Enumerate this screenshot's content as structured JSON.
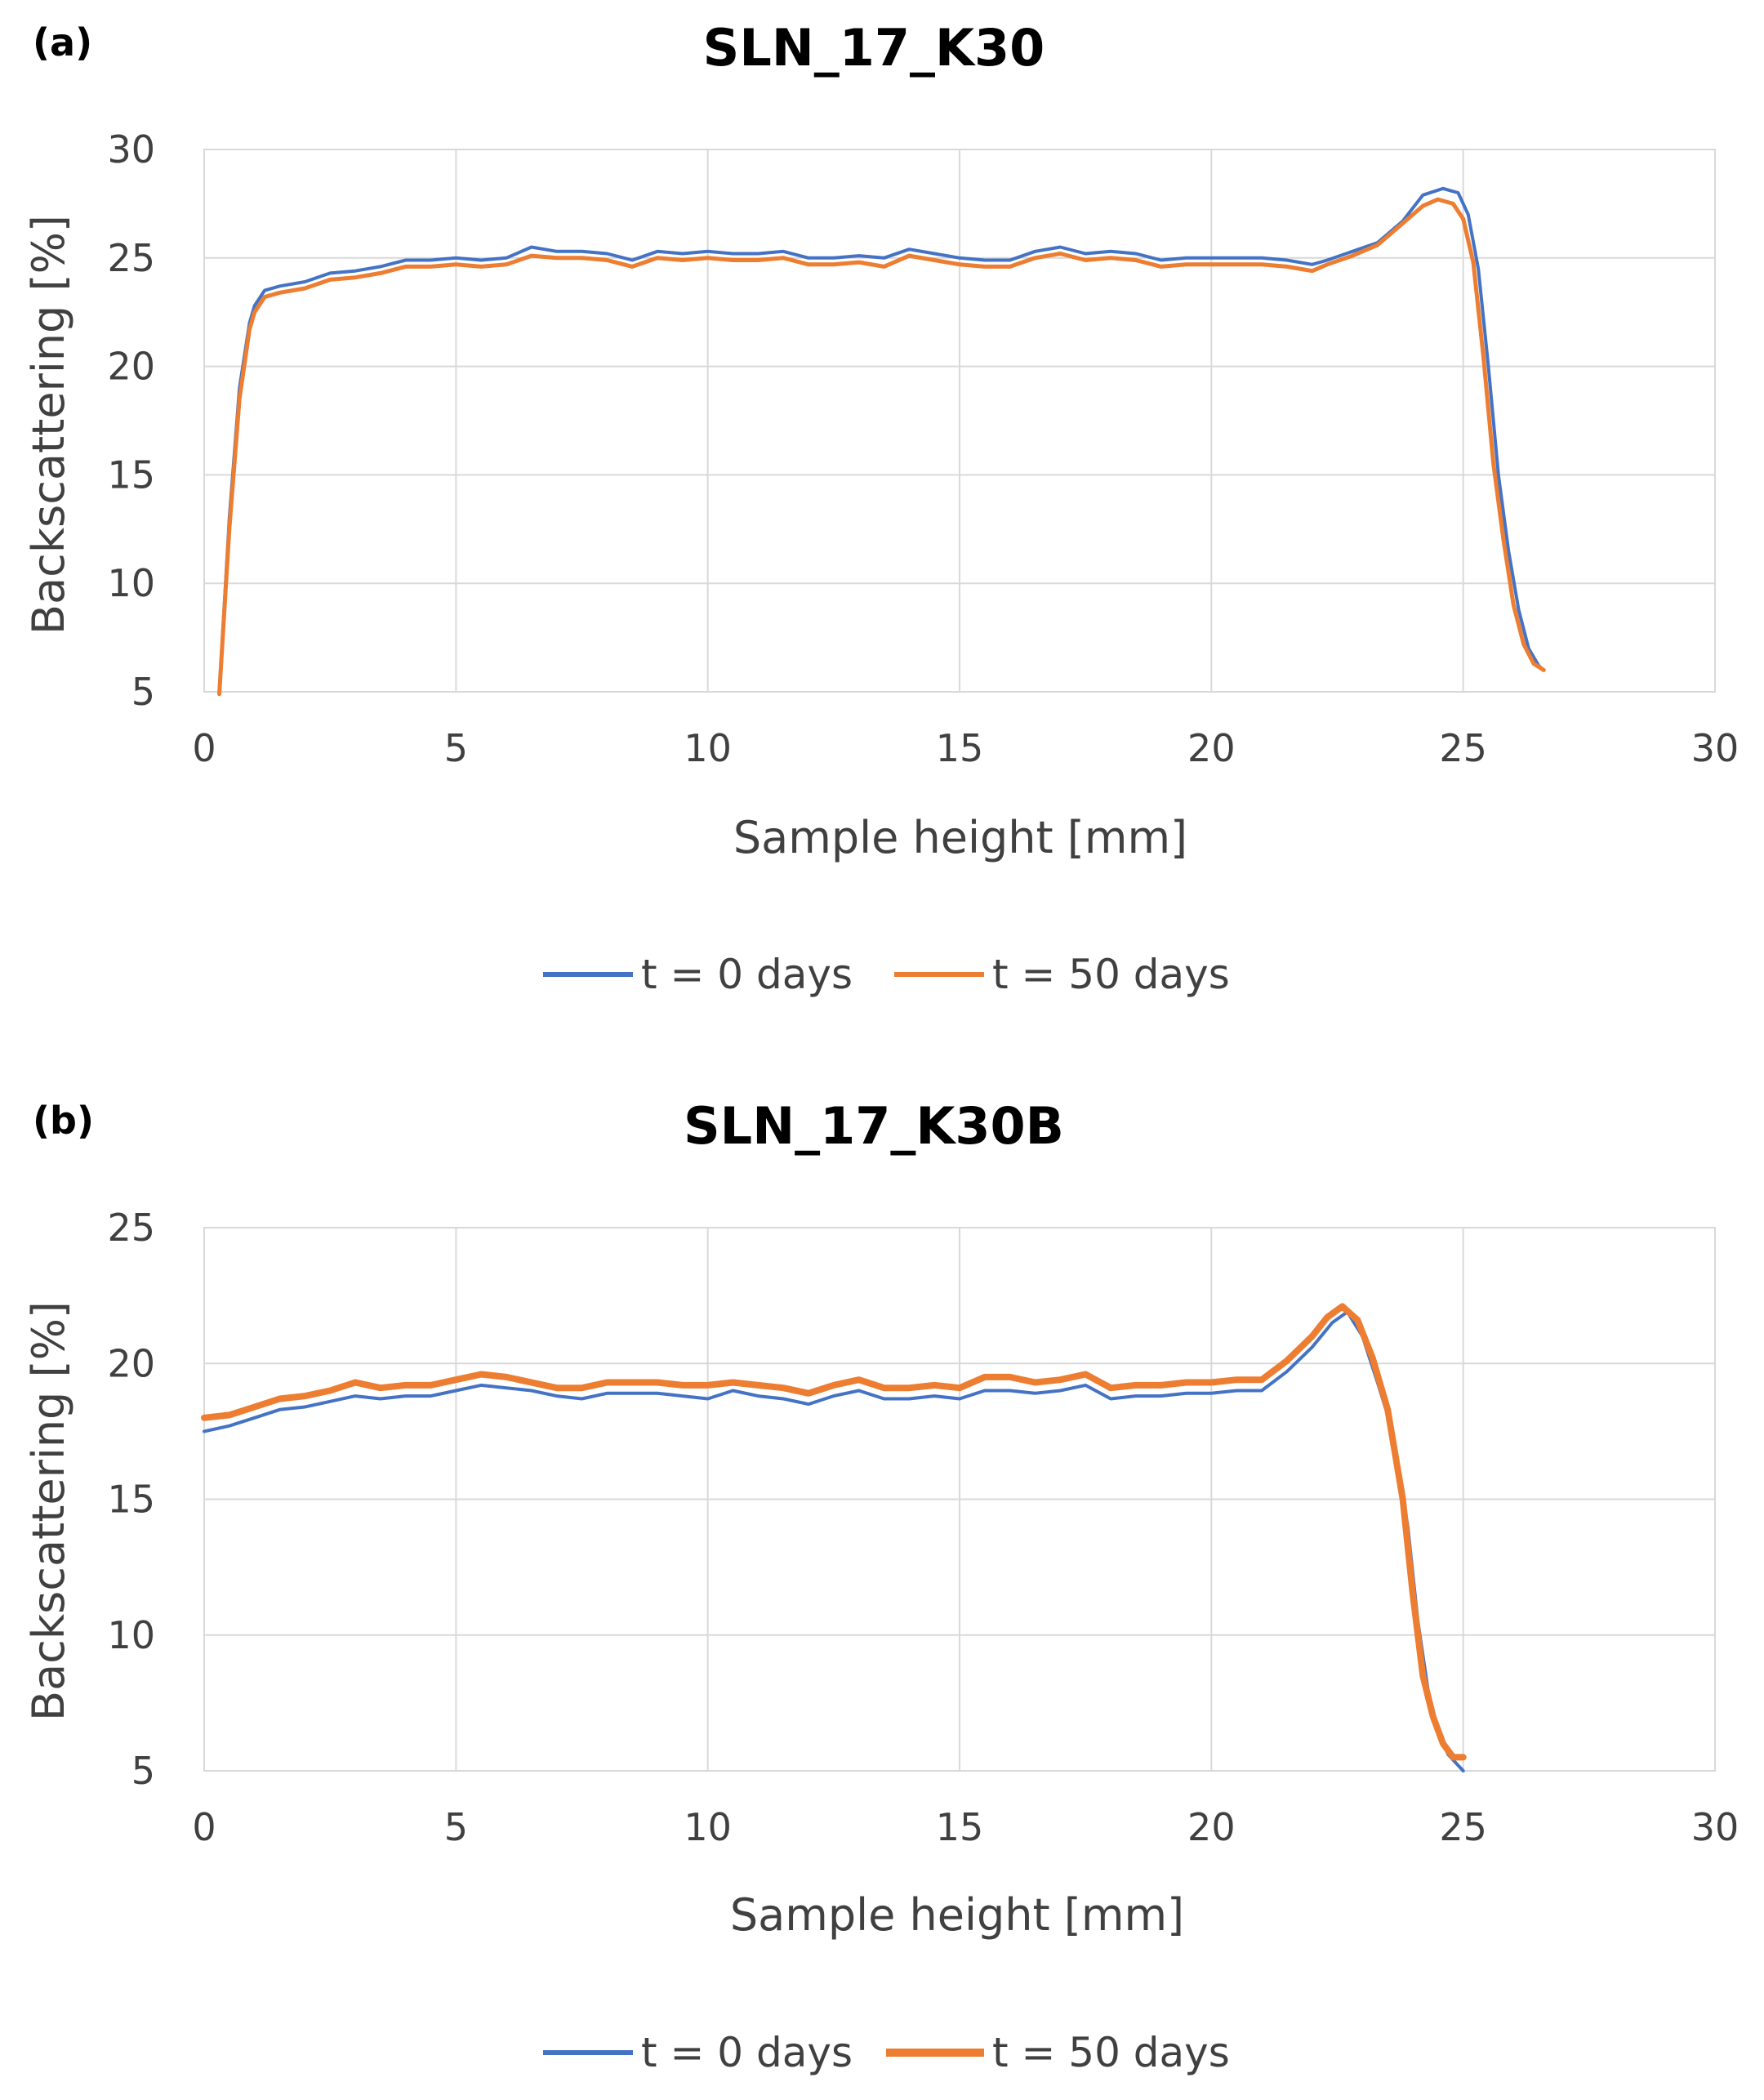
{
  "panels": [
    {
      "label": "(a)"
    },
    {
      "label": "(b)"
    }
  ],
  "chart_data": [
    {
      "type": "line",
      "title": "SLN_17_K30",
      "xlabel": "Sample height [mm]",
      "ylabel": "Backscattering [%]",
      "xlim": [
        0,
        30
      ],
      "ylim": [
        5,
        30
      ],
      "xticks": [
        "0",
        "5",
        "10",
        "15",
        "20",
        "25",
        "30"
      ],
      "yticks": [
        "5",
        "10",
        "15",
        "20",
        "25",
        "30"
      ],
      "grid": true,
      "legend": "bottom",
      "series": [
        {
          "name": "t = 0 days",
          "color": "#4472C4",
          "x": [
            0.3,
            0.5,
            0.7,
            0.9,
            1.0,
            1.2,
            1.5,
            2.0,
            2.5,
            3.0,
            3.5,
            4.0,
            4.5,
            5.0,
            5.5,
            6.0,
            6.5,
            7.0,
            7.5,
            8.0,
            8.5,
            9.0,
            9.5,
            10.0,
            10.5,
            11.0,
            11.5,
            12.0,
            12.5,
            13.0,
            13.5,
            14.0,
            14.5,
            15.0,
            15.5,
            16.0,
            16.5,
            17.0,
            17.5,
            18.0,
            18.5,
            19.0,
            19.5,
            20.0,
            20.5,
            21.0,
            21.5,
            22.0,
            22.3,
            22.8,
            23.3,
            23.8,
            24.2,
            24.6,
            24.9,
            25.1,
            25.3,
            25.5,
            25.7,
            25.9,
            26.1,
            26.3,
            26.5,
            26.6
          ],
          "y": [
            5.0,
            13.0,
            19.0,
            22.0,
            22.8,
            23.5,
            23.7,
            23.9,
            24.3,
            24.4,
            24.6,
            24.9,
            24.9,
            25.0,
            24.9,
            25.0,
            25.5,
            25.3,
            25.3,
            25.2,
            24.9,
            25.3,
            25.2,
            25.3,
            25.2,
            25.2,
            25.3,
            25.0,
            25.0,
            25.1,
            25.0,
            25.4,
            25.2,
            25.0,
            24.9,
            24.9,
            25.3,
            25.5,
            25.2,
            25.3,
            25.2,
            24.9,
            25.0,
            25.0,
            25.0,
            25.0,
            24.9,
            24.7,
            24.9,
            25.3,
            25.7,
            26.7,
            27.9,
            28.2,
            28.0,
            27.0,
            24.5,
            20.0,
            15.0,
            11.5,
            8.8,
            7.0,
            6.2,
            6.0
          ]
        },
        {
          "name": "t = 50 days",
          "color": "#ED7D31",
          "x": [
            0.3,
            0.5,
            0.7,
            0.9,
            1.0,
            1.2,
            1.5,
            2.0,
            2.5,
            3.0,
            3.5,
            4.0,
            4.5,
            5.0,
            5.5,
            6.0,
            6.5,
            7.0,
            7.5,
            8.0,
            8.5,
            9.0,
            9.5,
            10.0,
            10.5,
            11.0,
            11.5,
            12.0,
            12.5,
            13.0,
            13.5,
            14.0,
            14.5,
            15.0,
            15.5,
            16.0,
            16.5,
            17.0,
            17.5,
            18.0,
            18.5,
            19.0,
            19.5,
            20.0,
            20.5,
            21.0,
            21.5,
            22.0,
            22.3,
            22.8,
            23.3,
            23.8,
            24.2,
            24.5,
            24.8,
            25.0,
            25.2,
            25.4,
            25.6,
            25.8,
            26.0,
            26.2,
            26.4,
            26.6
          ],
          "y": [
            4.9,
            12.5,
            18.5,
            21.7,
            22.5,
            23.2,
            23.4,
            23.6,
            24.0,
            24.1,
            24.3,
            24.6,
            24.6,
            24.7,
            24.6,
            24.7,
            25.1,
            25.0,
            25.0,
            24.9,
            24.6,
            25.0,
            24.9,
            25.0,
            24.9,
            24.9,
            25.0,
            24.7,
            24.7,
            24.8,
            24.6,
            25.1,
            24.9,
            24.7,
            24.6,
            24.6,
            25.0,
            25.2,
            24.9,
            25.0,
            24.9,
            24.6,
            24.7,
            24.7,
            24.7,
            24.7,
            24.6,
            24.4,
            24.7,
            25.1,
            25.6,
            26.6,
            27.4,
            27.7,
            27.5,
            26.8,
            24.8,
            20.5,
            15.5,
            12.0,
            9.0,
            7.2,
            6.3,
            6.0
          ]
        }
      ]
    },
    {
      "type": "line",
      "title": "SLN_17_K30B",
      "xlabel": "Sample height [mm]",
      "ylabel": "Backscattering [%]",
      "xlim": [
        0,
        30
      ],
      "ylim": [
        5,
        25
      ],
      "xticks": [
        "0",
        "5",
        "10",
        "15",
        "20",
        "25",
        "30"
      ],
      "yticks": [
        "5",
        "10",
        "15",
        "20",
        "25"
      ],
      "grid": true,
      "legend": "bottom",
      "series": [
        {
          "name": "t = 0 days",
          "color": "#4472C4",
          "x": [
            0.0,
            0.5,
            1.0,
            1.5,
            2.0,
            2.5,
            3.0,
            3.5,
            4.0,
            4.5,
            5.0,
            5.5,
            6.0,
            6.5,
            7.0,
            7.5,
            8.0,
            8.5,
            9.0,
            9.5,
            10.0,
            10.5,
            11.0,
            11.5,
            12.0,
            12.5,
            13.0,
            13.5,
            14.0,
            14.5,
            15.0,
            15.5,
            16.0,
            16.5,
            17.0,
            17.5,
            18.0,
            18.5,
            19.0,
            19.5,
            20.0,
            20.5,
            21.0,
            21.5,
            22.0,
            22.4,
            22.7,
            23.0,
            23.3,
            23.6,
            23.9,
            24.1,
            24.3,
            24.5,
            24.7,
            24.9,
            25.0
          ],
          "y": [
            17.5,
            17.7,
            18.0,
            18.3,
            18.4,
            18.6,
            18.8,
            18.7,
            18.8,
            18.8,
            19.0,
            19.2,
            19.1,
            19.0,
            18.8,
            18.7,
            18.9,
            18.9,
            18.9,
            18.8,
            18.7,
            19.0,
            18.8,
            18.7,
            18.5,
            18.8,
            19.0,
            18.7,
            18.7,
            18.8,
            18.7,
            19.0,
            19.0,
            18.9,
            19.0,
            19.2,
            18.7,
            18.8,
            18.8,
            18.9,
            18.9,
            19.0,
            19.0,
            19.7,
            20.6,
            21.5,
            21.9,
            21.0,
            19.3,
            17.5,
            14.0,
            10.5,
            8.0,
            6.5,
            5.6,
            5.2,
            5.0
          ]
        },
        {
          "name": "t = 50 days",
          "color": "#ED7D31",
          "x": [
            0.0,
            0.5,
            1.0,
            1.5,
            2.0,
            2.5,
            3.0,
            3.5,
            4.0,
            4.5,
            5.0,
            5.5,
            6.0,
            6.5,
            7.0,
            7.5,
            8.0,
            8.5,
            9.0,
            9.5,
            10.0,
            10.5,
            11.0,
            11.5,
            12.0,
            12.5,
            13.0,
            13.5,
            14.0,
            14.5,
            15.0,
            15.5,
            16.0,
            16.5,
            17.0,
            17.5,
            18.0,
            18.5,
            19.0,
            19.5,
            20.0,
            20.5,
            21.0,
            21.5,
            22.0,
            22.3,
            22.6,
            22.9,
            23.2,
            23.5,
            23.8,
            24.0,
            24.2,
            24.4,
            24.6,
            24.8,
            25.0
          ],
          "y": [
            18.0,
            18.1,
            18.4,
            18.7,
            18.8,
            19.0,
            19.3,
            19.1,
            19.2,
            19.2,
            19.4,
            19.6,
            19.5,
            19.3,
            19.1,
            19.1,
            19.3,
            19.3,
            19.3,
            19.2,
            19.2,
            19.3,
            19.2,
            19.1,
            18.9,
            19.2,
            19.4,
            19.1,
            19.1,
            19.2,
            19.1,
            19.5,
            19.5,
            19.3,
            19.4,
            19.6,
            19.1,
            19.2,
            19.2,
            19.3,
            19.3,
            19.4,
            19.4,
            20.1,
            21.0,
            21.7,
            22.1,
            21.6,
            20.2,
            18.3,
            15.0,
            11.5,
            8.5,
            7.0,
            6.0,
            5.5,
            5.5
          ]
        }
      ]
    }
  ]
}
